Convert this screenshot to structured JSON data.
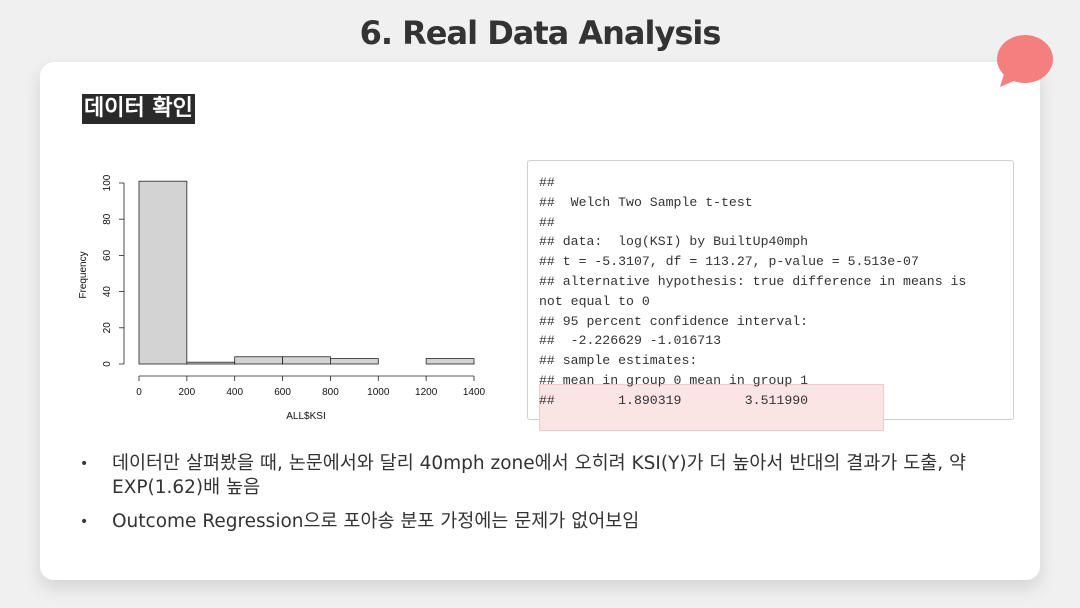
{
  "slide": {
    "title": "6. Real Data Analysis",
    "section_label": "데이터 확인",
    "accent_color": "#f47f7f"
  },
  "chart_data": {
    "type": "bar",
    "categories": [
      "0-200",
      "200-400",
      "400-600",
      "600-800",
      "800-1000",
      "1000-1200",
      "1200-1400"
    ],
    "values": [
      101,
      1,
      4,
      4,
      3,
      0,
      3
    ],
    "xlabel": "ALL$KSI",
    "ylabel": "Frequency",
    "xticks": [
      "0",
      "200",
      "400",
      "600",
      "800",
      "1000",
      "1200",
      "1400"
    ],
    "yticks": [
      "0",
      "20",
      "40",
      "60",
      "80",
      "100"
    ],
    "xlim": [
      0,
      1400
    ],
    "ylim": [
      0,
      100
    ],
    "grid": false
  },
  "console": {
    "lines": [
      "##",
      "##  Welch Two Sample t-test",
      "##",
      "## data:  log(KSI) by BuiltUp40mph",
      "## t = -5.3107, df = 113.27, p-value = 5.513e-07",
      "## alternative hypothesis: true difference in means is",
      "not equal to 0",
      "## 95 percent confidence interval:",
      "##  -2.226629 -1.016713",
      "## sample estimates:",
      "## mean in group 0 mean in group 1",
      "##        1.890319        3.511990"
    ]
  },
  "bullets": [
    "데이터만 살펴봤을 때, 논문에서와 달리 40mph zone에서 오히려 KSI(Y)가 더 높아서 반대의 결과가 도출, 약 EXP(1.62)배 높음",
    "Outcome Regression으로 포아송 분포 가정에는 문제가 없어보임"
  ]
}
